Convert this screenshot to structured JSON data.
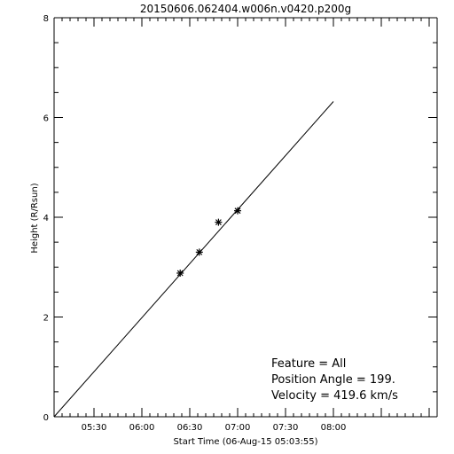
{
  "chart_data": {
    "type": "scatter",
    "title": "20150606.062404.w006n.v0420.p200g",
    "xlabel": "Start Time (06-Aug-15 05:03:55)",
    "ylabel": "Height (R/Rsun)",
    "x_is_time": true,
    "xlim": [
      "05:05",
      "09:05"
    ],
    "ylim": [
      0,
      8
    ],
    "x_tick_labels": [
      "05:30",
      "06:00",
      "06:30",
      "07:00",
      "07:30",
      "08:00"
    ],
    "y_tick_labels": [
      "0",
      "2",
      "4",
      "6",
      "8"
    ],
    "grid": false,
    "points": [
      {
        "x": "06:24",
        "y": 2.88
      },
      {
        "x": "06:36",
        "y": 3.3
      },
      {
        "x": "06:48",
        "y": 3.9
      },
      {
        "x": "07:00",
        "y": 4.13
      }
    ],
    "fit_line": {
      "start": {
        "x": "05:05",
        "y": 0.0
      },
      "end": {
        "x": "08:00",
        "y": 6.32
      }
    },
    "annotations": {
      "feature": "Feature = All",
      "position_angle": "Position Angle =  199.",
      "velocity": "Velocity =  419.6 km/s"
    }
  }
}
